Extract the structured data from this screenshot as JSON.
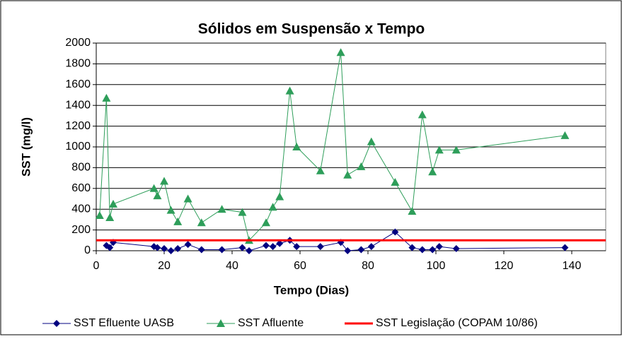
{
  "chart_data": {
    "type": "line",
    "title": "Sólidos em Suspensão x Tempo",
    "x_label": "Tempo (Dias)",
    "y_label": "SST (mg/l)",
    "xlim": [
      0,
      150
    ],
    "xticks": [
      0,
      20,
      40,
      60,
      80,
      100,
      120,
      140
    ],
    "ylim": [
      0,
      2000
    ],
    "yticks": [
      0,
      200,
      400,
      600,
      800,
      1000,
      1200,
      1400,
      1600,
      1800,
      2000
    ],
    "grid": true,
    "legend": "bottom",
    "series": [
      {
        "name": "SST Efluente UASB",
        "color": "#000080",
        "marker": "diamond",
        "x": [
          3,
          4,
          5,
          17,
          18,
          20,
          22,
          24,
          27,
          31,
          37,
          43,
          45,
          50,
          52,
          54,
          57,
          59,
          66,
          72,
          74,
          78,
          81,
          88,
          93,
          96,
          99,
          101,
          106,
          138
        ],
        "values": [
          50,
          30,
          80,
          40,
          30,
          20,
          0,
          20,
          60,
          10,
          10,
          30,
          0,
          50,
          40,
          70,
          100,
          40,
          40,
          80,
          0,
          10,
          40,
          180,
          30,
          10,
          10,
          40,
          20,
          30
        ]
      },
      {
        "name": "SST Afluente",
        "color": "#2e9e5a",
        "marker": "triangle",
        "x": [
          1,
          3,
          4,
          5,
          17,
          18,
          20,
          22,
          24,
          27,
          31,
          37,
          43,
          45,
          50,
          52,
          54,
          57,
          59,
          66,
          72,
          74,
          78,
          81,
          88,
          93,
          96,
          99,
          101,
          106,
          138
        ],
        "values": [
          340,
          1470,
          320,
          450,
          600,
          530,
          670,
          390,
          280,
          500,
          270,
          400,
          370,
          100,
          270,
          420,
          520,
          1540,
          1000,
          770,
          1910,
          730,
          810,
          1050,
          660,
          380,
          1310,
          760,
          970,
          970,
          1110
        ]
      },
      {
        "name": "SST Legislação (COPAM 10/86)",
        "color": "#ff0000",
        "marker": "none",
        "x": [
          0,
          150
        ],
        "values": [
          100,
          100
        ]
      }
    ]
  }
}
